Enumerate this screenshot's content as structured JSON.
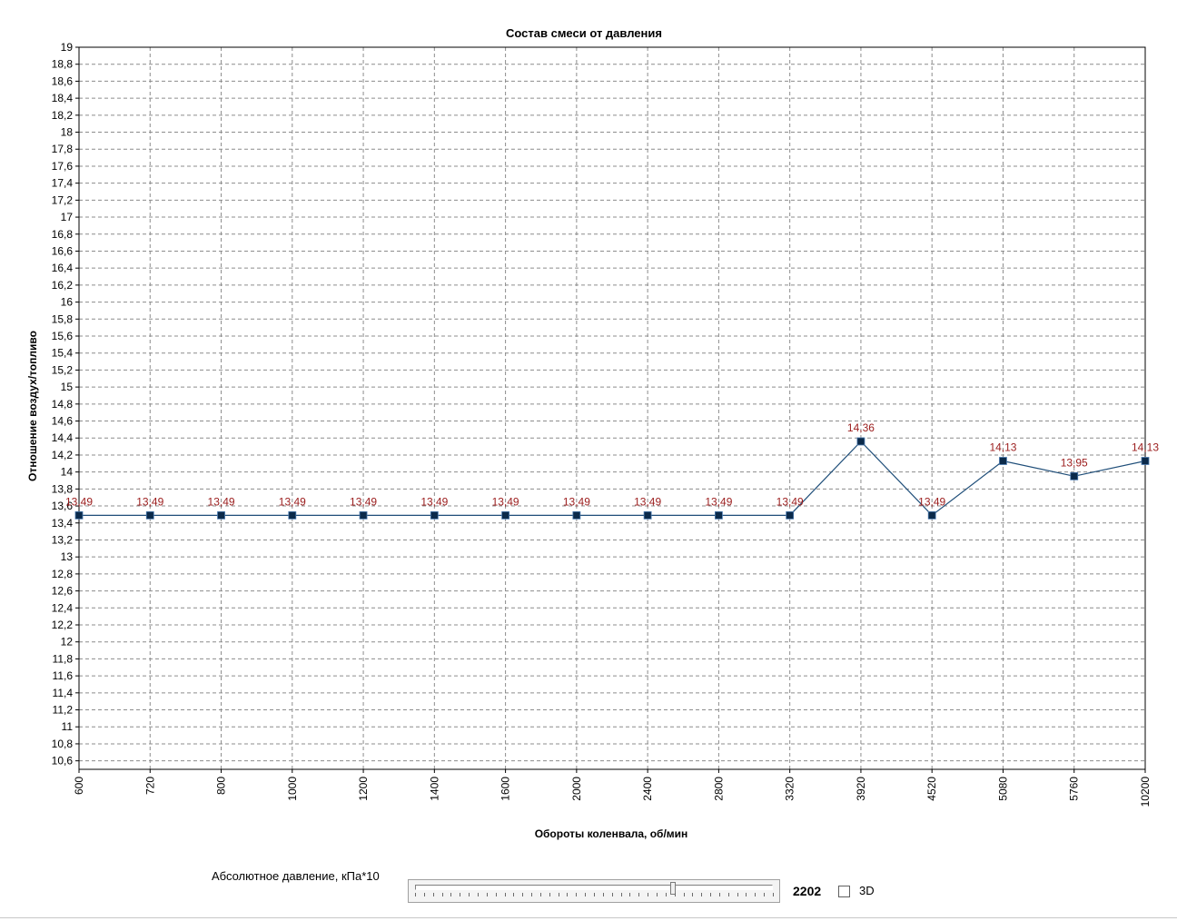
{
  "chart_data": {
    "type": "line",
    "title": "Состав смеси от давления",
    "xlabel": "Обороты коленвала, об/мин",
    "ylabel": "Отношение воздух/топливо",
    "categories": [
      "600",
      "720",
      "800",
      "1000",
      "1200",
      "1400",
      "1600",
      "2000",
      "2400",
      "2800",
      "3320",
      "3920",
      "4520",
      "5080",
      "5760",
      "10200"
    ],
    "series": [
      {
        "values": [
          13.49,
          13.49,
          13.49,
          13.49,
          13.49,
          13.49,
          13.49,
          13.49,
          13.49,
          13.49,
          13.49,
          14.36,
          13.49,
          14.13,
          13.95,
          14.13
        ],
        "data_labels": [
          "13,49",
          "13,49",
          "13,49",
          "13,49",
          "13,49",
          "13,49",
          "13,49",
          "13,49",
          "13,49",
          "13,49",
          "13,49",
          "14,36",
          "13,49",
          "14,13",
          "13,95",
          "14,13"
        ]
      }
    ],
    "ylim": [
      10.5,
      19
    ],
    "yticks": [
      "10,6",
      "10,8",
      "11",
      "11,2",
      "11,4",
      "11,6",
      "11,8",
      "12",
      "12,2",
      "12,4",
      "12,6",
      "12,8",
      "13",
      "13,2",
      "13,4",
      "13,6",
      "13,8",
      "14",
      "14,2",
      "14,4",
      "14,6",
      "14,8",
      "15",
      "15,2",
      "15,4",
      "15,6",
      "15,8",
      "16",
      "16,2",
      "16,4",
      "16,6",
      "16,8",
      "17",
      "17,2",
      "17,4",
      "17,6",
      "17,8",
      "18",
      "18,2",
      "18,4",
      "18,6",
      "18,8",
      "19"
    ],
    "grid": true,
    "line_color": "#1f4e79",
    "marker_color": "#0b2a4a",
    "label_color": "#9b1c1c"
  },
  "controls": {
    "slider_label": "Абсолютное давление, кПа*10",
    "slider_value": "2202",
    "slider_fraction": 0.72,
    "checkbox_label": "3D",
    "checkbox_checked": false
  }
}
